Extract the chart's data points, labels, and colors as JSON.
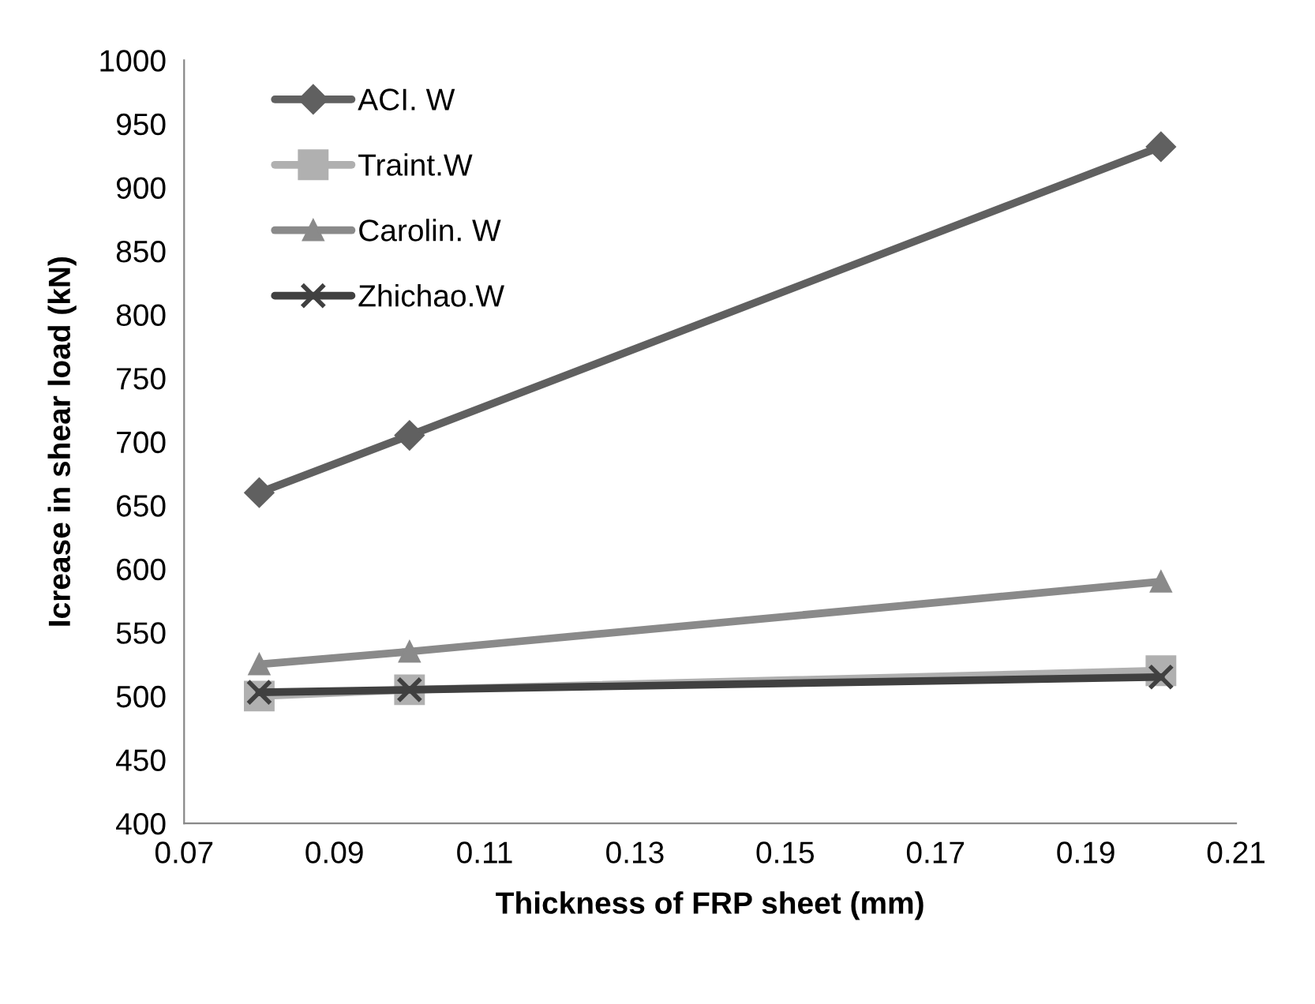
{
  "chart_data": {
    "type": "line",
    "xlabel": "Thickness of FRP sheet (mm)",
    "ylabel": "Icrease in shear load (kN)",
    "x": [
      0.08,
      0.1,
      0.2
    ],
    "xlim": [
      0.07,
      0.21
    ],
    "xticks": [
      {
        "value": 0.07,
        "label": "0.07"
      },
      {
        "value": 0.09,
        "label": "0.09"
      },
      {
        "value": 0.11,
        "label": "0.11"
      },
      {
        "value": 0.13,
        "label": "0.13"
      },
      {
        "value": 0.15,
        "label": "0.15"
      },
      {
        "value": 0.17,
        "label": "0.17"
      },
      {
        "value": 0.19,
        "label": "0.19"
      },
      {
        "value": 0.21,
        "label": "0.21"
      }
    ],
    "ylim": [
      400,
      1000
    ],
    "yticks": [
      400,
      450,
      500,
      550,
      600,
      650,
      700,
      750,
      800,
      850,
      900,
      950,
      1000
    ],
    "grid": false,
    "legend": "top left",
    "series": [
      {
        "name": "ACI. W",
        "color": "#606060",
        "marker": "diamond",
        "values": [
          660,
          705,
          932
        ]
      },
      {
        "name": "Traint.W",
        "color": "#b0b0b0",
        "marker": "square",
        "values": [
          500,
          505,
          520
        ]
      },
      {
        "name": "Carolin. W",
        "color": "#8a8a8a",
        "marker": "triangle",
        "values": [
          525,
          535,
          590
        ]
      },
      {
        "name": "Zhichao.W",
        "color": "#404040",
        "marker": "cross",
        "values": [
          503,
          505,
          515
        ]
      }
    ]
  }
}
